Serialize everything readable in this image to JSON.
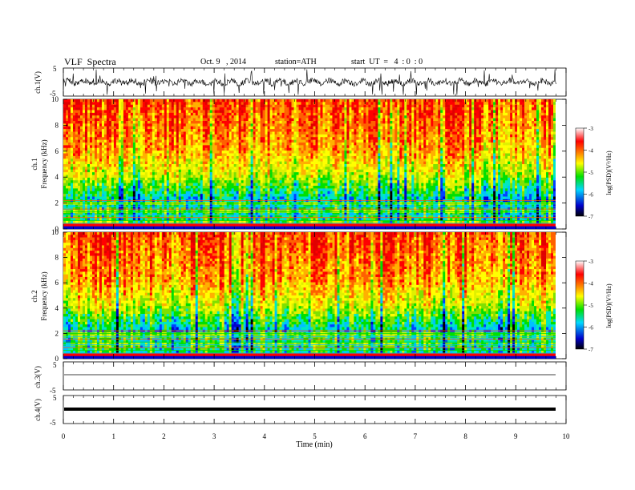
{
  "header": {
    "title": "VLF  Spectra",
    "date": "Oct. 9   , 2014",
    "station": "station=ATH",
    "start": "start  UT  =   4  : 0  : 0"
  },
  "chart_data": [
    {
      "type": "line",
      "panel": "ch1-waveform",
      "ylabel": "ch.1(V)",
      "ylim": [
        -5,
        5
      ],
      "yticks": [
        "5",
        "-5"
      ],
      "xlim": [
        0,
        10
      ],
      "x": [
        0,
        0.5,
        1,
        1.5,
        2,
        2.5,
        3,
        3.5,
        4,
        4.5,
        5,
        5.5,
        6,
        6.5,
        7,
        7.5,
        8,
        8.5,
        9,
        9.5,
        9.8
      ],
      "y": [
        1.2,
        0.3,
        0.9,
        -0.4,
        0.7,
        -0.6,
        0.5,
        0.1,
        -0.5,
        0.6,
        -0.2,
        0.4,
        0.8,
        -0.5,
        0.2,
        0.6,
        -0.3,
        0.5,
        0.1,
        -0.4,
        0.3
      ],
      "description_level": "noisy waveform centered near 0 V"
    },
    {
      "type": "heatmap",
      "panel": "ch1-spectrogram",
      "ylabel": "ch.1 Frequency (kHz)",
      "ylim": [
        0,
        10
      ],
      "yticks": [
        "0",
        "2",
        "4",
        "6",
        "8",
        "10"
      ],
      "xlim": [
        0,
        10
      ],
      "colorbar": {
        "label": "log(PSD)(V²/Hz)",
        "range": [
          -7,
          -3
        ],
        "ticks": [
          "-3",
          "-4",
          "-5",
          "-6",
          "-7"
        ]
      }
    },
    {
      "type": "heatmap",
      "panel": "ch2-spectrogram",
      "ylabel": "ch.2 Frequency (kHz)",
      "ylim": [
        0,
        10
      ],
      "yticks": [
        "0",
        "2",
        "4",
        "6",
        "8",
        "10"
      ],
      "xlim": [
        0,
        10
      ],
      "colorbar": {
        "label": "log(PSD)(V²/Hz)",
        "range": [
          -7,
          -3
        ],
        "ticks": [
          "-3",
          "-4",
          "-5",
          "-6",
          "-7"
        ]
      }
    },
    {
      "type": "line",
      "panel": "ch3-waveform",
      "ylabel": "ch.3(V)",
      "ylim": [
        -5,
        5
      ],
      "yticks": [
        "5",
        "-5"
      ],
      "xlim": [
        0,
        10
      ],
      "x": [
        0,
        9.8
      ],
      "y": [
        0.5,
        0.5
      ]
    },
    {
      "type": "line",
      "panel": "ch4-waveform",
      "ylabel": "ch.4(V)",
      "ylim": [
        -5,
        5
      ],
      "yticks": [
        "5",
        "-5"
      ],
      "xlim": [
        0,
        10
      ],
      "x": [
        0,
        9.8
      ],
      "y": [
        0,
        0
      ]
    }
  ],
  "xaxis": {
    "label": "Time  (min)",
    "ticks": [
      "0",
      "1",
      "2",
      "3",
      "4",
      "5",
      "6",
      "7",
      "8",
      "9",
      "10"
    ],
    "range": [
      0,
      10
    ]
  },
  "colors": {
    "low": "#000000",
    "blue": "#0000ff",
    "cyan": "#00e0ff",
    "green": "#00e000",
    "yellow": "#ffff00",
    "orange": "#ff8000",
    "red": "#ff0000",
    "high": "#ffffff"
  }
}
